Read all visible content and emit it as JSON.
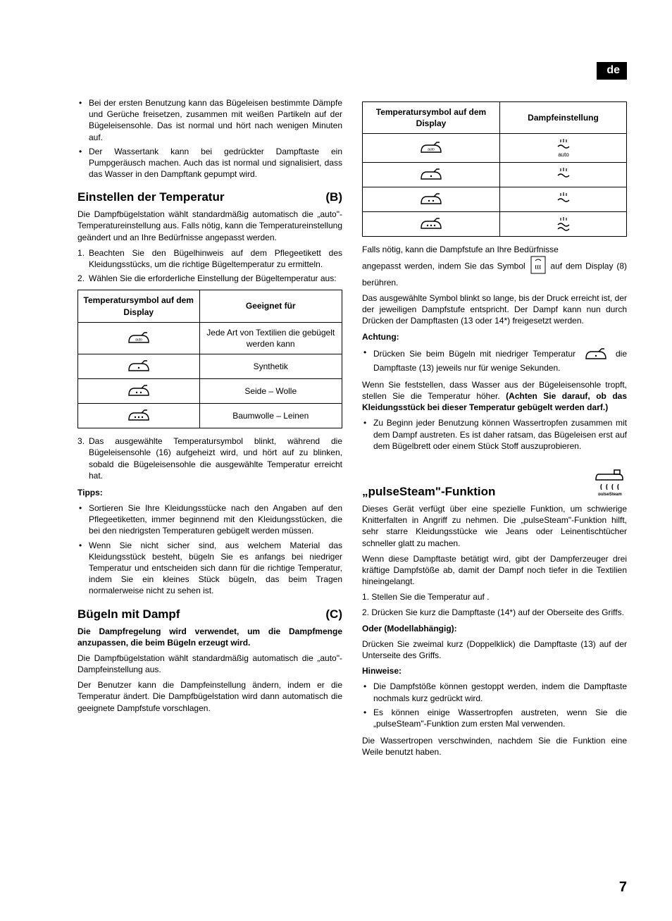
{
  "lang_tag": "de",
  "page_number": "7",
  "left": {
    "intro_bullets": [
      "Bei der ersten Benutzung kann das Bügeleisen bestimmte Dämpfe und Gerüche freisetzen, zusammen mit weißen Partikeln auf der Bügeleisensohle. Das ist normal und hört nach wenigen Minuten auf.",
      "Der Wassertank kann bei gedrückter Dampftaste ein Pumpgeräusch machen. Auch das ist normal und signalisiert, dass das Wasser in den Dampftank gepumpt wird."
    ],
    "sec_b_title": "Einstellen der Temperatur",
    "sec_b_letter": "(B)",
    "sec_b_intro": "Die Dampfbügelstation wählt standardmäßig automatisch die „auto\"-Temperatureinstellung aus. Falls nötig, kann die Temperatureinstellung geändert und an Ihre Bedürfnisse angepasst werden.",
    "sec_b_steps": [
      "Beachten Sie den Bügelhinweis auf dem Pflegeetikett des Kleidungsstücks, um die richtige Bügeltemperatur zu ermitteln.",
      "Wählen Sie die erforderliche Einstellung der Bügeltemperatur aus:"
    ],
    "table1": {
      "head_left": "Temperatursymbol auf dem Display",
      "head_right": "Geeignet für",
      "rows": [
        {
          "icon_label": "auto",
          "dots": 0,
          "text": "Jede Art von Textilien die gebügelt werden kann"
        },
        {
          "icon_label": "",
          "dots": 1,
          "text": "Synthetik"
        },
        {
          "icon_label": "",
          "dots": 2,
          "text": "Seide – Wolle"
        },
        {
          "icon_label": "",
          "dots": 3,
          "text": "Baumwolle – Leinen"
        }
      ]
    },
    "sec_b_step3": "Das ausgewählte Temperatursymbol blinkt, während die Bügeleisensohle (16) aufgeheizt wird, und hört auf zu blinken, sobald die Bügeleisensohle die ausgewählte Temperatur erreicht hat.",
    "tips_label": "Tipps:",
    "tips": [
      "Sortieren Sie Ihre Kleidungsstücke nach den Angaben auf den Pflegeetiketten, immer beginnend mit den Kleidungsstücken, die bei den niedrigsten Temperaturen gebügelt werden müssen.",
      "Wenn Sie nicht sicher sind, aus welchem Material das Kleidungsstück besteht, bügeln Sie es anfangs bei niedriger Temperatur und entscheiden sich dann für die richtige Temperatur, indem Sie ein kleines Stück bügeln, das beim Tragen normalerweise nicht zu sehen ist."
    ],
    "sec_c_title": "Bügeln mit Dampf",
    "sec_c_letter": "(C)",
    "sec_c_intro_bold": "Die Dampfregelung wird verwendet, um die Dampfmenge anzupassen, die beim Bügeln erzeugt wird.",
    "sec_c_p1": "Die Dampfbügelstation wählt standardmäßig automatisch die „auto\"-Dampfeinstellung aus.",
    "sec_c_p2": "Der Benutzer kann die Dampfeinstellung ändern, indem er die Temperatur ändert. Die Dampfbügelstation wird dann automatisch die geeignete Dampfstufe vorschlagen."
  },
  "right": {
    "table2": {
      "head_left": "Temperatursymbol auf dem Display",
      "head_right": "Dampfeinstellung",
      "rows": [
        {
          "dots": 0,
          "icon_label": "auto",
          "steam_lines": 1,
          "steam_label": "auto"
        },
        {
          "dots": 1,
          "icon_label": "",
          "steam_lines": 1,
          "steam_label": ""
        },
        {
          "dots": 2,
          "icon_label": "",
          "steam_lines": 1,
          "steam_label": ""
        },
        {
          "dots": 3,
          "icon_label": "",
          "steam_lines": 2,
          "steam_label": ""
        }
      ]
    },
    "p_after_table_a": "Falls nötig, kann die Dampfstufe an Ihre Bedürfnisse",
    "p_after_table_b": "angepasst werden, indem Sie das Symbol",
    "p_after_table_c": "auf dem Display (8) berühren.",
    "p2": "Das ausgewählte Symbol blinkt so lange, bis der Druck erreicht ist, der der jeweiligen Dampfstufe entspricht. Der Dampf kann nun durch Drücken der Dampftasten (13 oder 14*) freigesetzt werden.",
    "achtung_label": "Achtung:",
    "achtung_bullet_a": "Drücken Sie beim Bügeln mit niedriger Temperatur",
    "achtung_bullet_b": "die Dampftaste (13) jeweils nur für wenige Sekunden.",
    "warn_p_a": "Wenn Sie feststellen, dass Wasser aus der Bügeleisensohle tropft, stellen Sie die Temperatur höher.",
    "warn_p_b": "(Achten Sie darauf, ob das Kleidungsstück bei dieser Temperatur gebügelt werden darf.)",
    "after_warn_bullet": "Zu Beginn jeder Benutzung können Wassertropfen zusammen mit dem Dampf austreten. Es ist daher ratsam, das Bügeleisen erst auf dem Bügelbrett oder einem Stück Stoff auszuprobieren.",
    "pulse_title": "„pulseSteam\"-Funktion",
    "pulse_intro": "Dieses Gerät verfügt über eine spezielle Funktion, um schwierige Knitterfalten in Angriff zu nehmen. Die „pulseSteam\"-Funktion hilft, sehr starre Kleidungsstücke wie Jeans oder Leinentischtücher schneller glatt zu machen.",
    "pulse_p2": "Wenn diese Dampftaste betätigt wird, gibt der Dampferzeuger drei kräftige Dampfstöße ab, damit der Dampf noch tiefer in die Textilien hineingelangt.",
    "pulse_step1": "1. Stellen Sie die Temperatur auf .",
    "pulse_step2": "2. Drücken Sie kurz die Dampftaste (14*) auf der Oberseite des Griffs.",
    "oder_label": "Oder (Modellabhängig):",
    "oder_p": "Drücken Sie zweimal kurz (Doppelklick) die Dampftaste (13) auf der Unterseite des Griffs.",
    "hinweise_label": "Hinweise:",
    "hinweise": [
      "Die Dampfstöße können gestoppt werden, indem die Dampftaste nochmals kurz gedrückt wird.",
      "Es können einige Wassertropfen austreten, wenn Sie die „pulseSteam\"-Funktion zum ersten Mal verwenden."
    ],
    "final_p": "Die Wassertropen verschwinden, nachdem Sie die Funktion eine Weile benutzt haben."
  }
}
